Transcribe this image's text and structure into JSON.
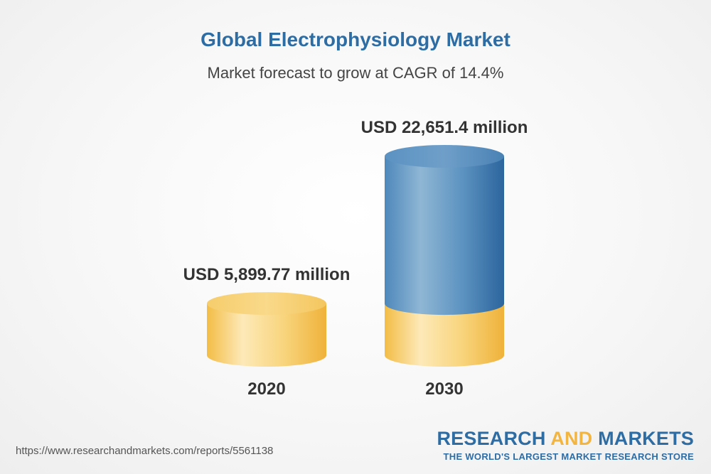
{
  "header": {
    "title": "Global Electrophysiology Market",
    "subtitle": "Market forecast to grow at CAGR of 14.4%"
  },
  "chart_data": {
    "type": "bar",
    "categories": [
      "2020",
      "2030"
    ],
    "values": [
      5899.77,
      22651.4
    ],
    "value_labels": [
      "USD 5,899.77 million",
      "USD 22,651.4 million"
    ],
    "title": "Global Electrophysiology Market",
    "subtitle": "Market forecast to grow at CAGR of 14.4%",
    "xlabel": "",
    "ylabel": "",
    "ylim": [
      0,
      22651.4
    ],
    "grid": false,
    "colors": {
      "base": "#f5c453",
      "growth": "#4a84b5"
    }
  },
  "footer": {
    "url": "https://www.researchandmarkets.com/reports/5561138",
    "brand_part1": "RESEARCH ",
    "brand_part2": "AND",
    "brand_part3": " MARKETS",
    "tagline": "THE WORLD'S LARGEST MARKET RESEARCH STORE"
  }
}
